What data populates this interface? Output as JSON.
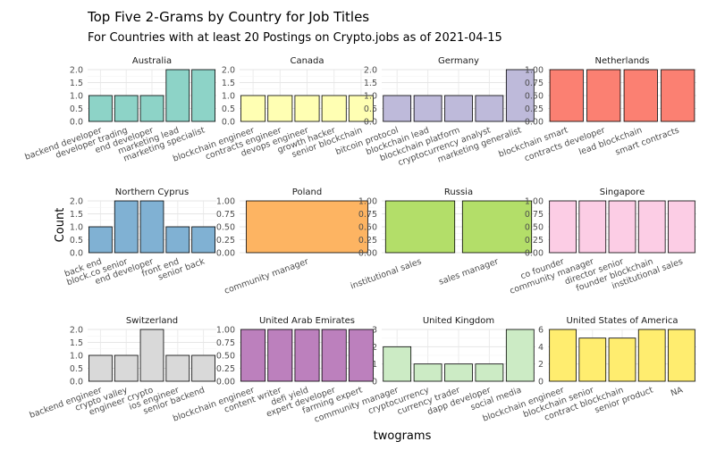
{
  "title": "Top Five 2-Grams by Country for Job Titles",
  "subtitle": "For Countries with at least 20 Postings on Crypto.jobs as of 2021-04-15",
  "xlabel": "twograms",
  "ylabel": "Count",
  "chart_data": {
    "type": "bar",
    "title": "Top Five 2-Grams by Country for Job Titles",
    "subtitle": "For Countries with at least 20 Postings on Crypto.jobs as of 2021-04-15",
    "xlabel": "twograms",
    "ylabel": "Count",
    "facet_scales": "free",
    "grid": true,
    "legend": "none",
    "facets": [
      {
        "name": "Australia",
        "color": "#8dd3c7",
        "categories": [
          "backend developer",
          "developer trading",
          "end developer",
          "marketing lead",
          "marketing specialist"
        ],
        "values": [
          1,
          1,
          1,
          2,
          2
        ],
        "ylim": [
          0,
          2
        ],
        "yticks": [
          "0.0",
          "0.5",
          "1.0",
          "1.5",
          "2.0"
        ]
      },
      {
        "name": "Canada",
        "color": "#ffffb3",
        "categories": [
          "blockchain engineer",
          "contracts engineer",
          "devops engineer",
          "growth hacker",
          "senior blockchain"
        ],
        "values": [
          1,
          1,
          1,
          1,
          1
        ],
        "ylim": [
          0,
          2
        ],
        "yticks": [
          "0.0",
          "0.5",
          "1.0",
          "1.5",
          "2.0"
        ]
      },
      {
        "name": "Germany",
        "color": "#bebada",
        "categories": [
          "bitcoin protocol",
          "blockchain lead",
          "blockchain platform",
          "cryptocurrency analyst",
          "marketing generalist"
        ],
        "values": [
          1,
          1,
          1,
          1,
          2
        ],
        "ylim": [
          0,
          2
        ],
        "yticks": [
          "0.0",
          "0.5",
          "1.0",
          "1.5",
          "2.0"
        ]
      },
      {
        "name": "Netherlands",
        "color": "#fb8072",
        "categories": [
          "blockchain smart",
          "contracts developer",
          "lead blockchain",
          "smart contracts"
        ],
        "values": [
          1,
          1,
          1,
          1
        ],
        "ylim": [
          0,
          1
        ],
        "yticks": [
          "0.00",
          "0.25",
          "0.50",
          "0.75",
          "1.00"
        ]
      },
      {
        "name": "Northern Cyprus",
        "color": "#80b1d3",
        "categories": [
          "back end",
          "block.co senior",
          "end developer",
          "front end",
          "senior back"
        ],
        "values": [
          1,
          2,
          2,
          1,
          1
        ],
        "ylim": [
          0,
          2
        ],
        "yticks": [
          "0.0",
          "0.5",
          "1.0",
          "1.5",
          "2.0"
        ]
      },
      {
        "name": "Poland",
        "color": "#fdb462",
        "categories": [
          "community manager"
        ],
        "values": [
          1
        ],
        "ylim": [
          0,
          1
        ],
        "yticks": [
          "0.00",
          "0.25",
          "0.50",
          "0.75",
          "1.00"
        ]
      },
      {
        "name": "Russia",
        "color": "#b3de69",
        "categories": [
          "institutional sales",
          "sales manager"
        ],
        "values": [
          1,
          1
        ],
        "ylim": [
          0,
          1
        ],
        "yticks": [
          "0.00",
          "0.25",
          "0.50",
          "0.75",
          "1.00"
        ]
      },
      {
        "name": "Singapore",
        "color": "#fccde5",
        "categories": [
          "co founder",
          "community manager",
          "director senior",
          "founder blockchain",
          "institutional sales"
        ],
        "values": [
          1,
          1,
          1,
          1,
          1
        ],
        "ylim": [
          0,
          1
        ],
        "yticks": [
          "0.00",
          "0.25",
          "0.50",
          "0.75",
          "1.00"
        ]
      },
      {
        "name": "Switzerland",
        "color": "#d9d9d9",
        "categories": [
          "backend engineer",
          "crypto valley",
          "engineer crypto",
          "ios engineer",
          "senior backend"
        ],
        "values": [
          1,
          1,
          2,
          1,
          1
        ],
        "ylim": [
          0,
          2
        ],
        "yticks": [
          "0.0",
          "0.5",
          "1.0",
          "1.5",
          "2.0"
        ]
      },
      {
        "name": "United Arab Emirates",
        "color": "#bc80bd",
        "categories": [
          "blockchain engineer",
          "content writer",
          "defi yield",
          "expert developer",
          "farming expert"
        ],
        "values": [
          1,
          1,
          1,
          1,
          1
        ],
        "ylim": [
          0,
          1
        ],
        "yticks": [
          "0.00",
          "0.25",
          "0.50",
          "0.75",
          "1.00"
        ]
      },
      {
        "name": "United Kingdom",
        "color": "#ccebc5",
        "categories": [
          "community manager",
          "cryptocurrency",
          "currency trader",
          "dapp developer",
          "social media"
        ],
        "values": [
          2,
          1,
          1,
          1,
          3
        ],
        "ylim": [
          0,
          3
        ],
        "yticks": [
          "0",
          "1",
          "2",
          "3"
        ]
      },
      {
        "name": "United States of America",
        "color": "#ffed6f",
        "categories": [
          "blockchain engineer",
          "blockchain senior",
          "contract blockchain",
          "senior product",
          "NA"
        ],
        "values": [
          6,
          5,
          5,
          6,
          6
        ],
        "ylim": [
          0,
          6
        ],
        "yticks": [
          "0",
          "2",
          "4",
          "6"
        ]
      }
    ]
  }
}
